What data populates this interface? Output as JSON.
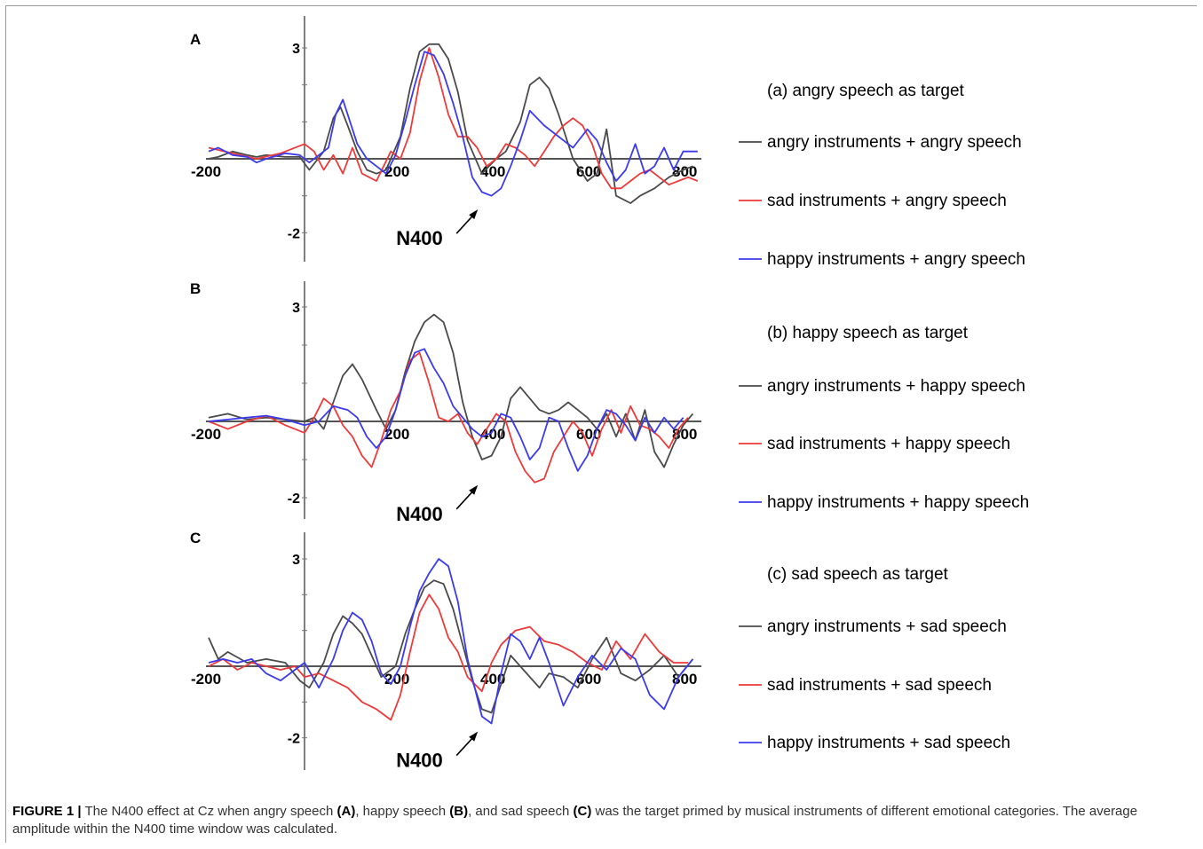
{
  "caption": {
    "label": "FIGURE 1 |",
    "segments": [
      {
        "text": " The N400 effect at Cz when angry speech ",
        "bold": false
      },
      {
        "text": "(A)",
        "bold": true
      },
      {
        "text": ", happy speech ",
        "bold": false
      },
      {
        "text": "(B)",
        "bold": true
      },
      {
        "text": ", and sad speech ",
        "bold": false
      },
      {
        "text": "(C)",
        "bold": true
      },
      {
        "text": " was the target primed by musical instruments of different emotional categories. The average amplitude within the N400 time window was calculated.",
        "bold": false
      }
    ]
  },
  "colors": {
    "angry": "#4a4a4a",
    "sad": "#ee3a3a",
    "happy": "#3b3bee"
  },
  "chart_data": [
    {
      "type": "line",
      "panel": "A",
      "title": "(a) angry speech as target",
      "x_ticks": [
        "-200",
        "200",
        "400",
        "600",
        "800"
      ],
      "y_ticks": [
        "3",
        "-2"
      ],
      "annotation": {
        "text": "N400",
        "x": 380,
        "y": -1.3
      },
      "series": [
        {
          "name": "angry instruments + angry speech",
          "color_key": "angry",
          "x": [
            -200,
            -180,
            -150,
            -120,
            -100,
            -80,
            -40,
            -10,
            10,
            40,
            60,
            75,
            90,
            110,
            130,
            150,
            170,
            200,
            220,
            240,
            260,
            280,
            300,
            320,
            340,
            370,
            385,
            400,
            420,
            450,
            470,
            490,
            510,
            530,
            560,
            590,
            610,
            630,
            650,
            680,
            700,
            730,
            760,
            790,
            810
          ],
          "y": [
            0,
            0.05,
            0.2,
            0.1,
            0.05,
            0.1,
            0.05,
            0.05,
            -0.3,
            0.2,
            1.1,
            1.4,
            0.9,
            0.2,
            -0.3,
            -0.4,
            -0.3,
            0.6,
            1.9,
            2.9,
            3.1,
            3.1,
            2.7,
            1.8,
            0.5,
            -0.4,
            -0.2,
            0,
            0.2,
            1.0,
            2.0,
            2.2,
            1.9,
            1.2,
            0,
            -0.6,
            -0.4,
            0.8,
            -1.0,
            -1.2,
            -1.0,
            -0.8,
            -0.5,
            -0.3,
            -0.2
          ]
        },
        {
          "name": "sad instruments + angry speech",
          "color_key": "sad",
          "x": [
            -200,
            -150,
            -100,
            -50,
            0,
            20,
            40,
            60,
            80,
            100,
            120,
            150,
            180,
            200,
            220,
            240,
            260,
            280,
            300,
            320,
            340,
            360,
            380,
            400,
            420,
            440,
            460,
            480,
            500,
            520,
            540,
            560,
            580,
            600,
            620,
            640,
            660,
            680,
            700,
            720,
            740,
            760,
            780,
            800,
            820
          ],
          "y": [
            0.3,
            0.15,
            0,
            0.15,
            0.4,
            0.2,
            -0.3,
            0.1,
            -0.4,
            0.3,
            -0.4,
            -0.6,
            0.2,
            0,
            0.7,
            2.1,
            3.0,
            2.2,
            1.2,
            0.6,
            0.6,
            0.3,
            -0.2,
            0,
            0.4,
            0.3,
            0.1,
            -0.2,
            0.2,
            0.6,
            0.9,
            1.1,
            0.9,
            0.4,
            -0.4,
            -0.8,
            -0.8,
            -0.6,
            -0.4,
            -0.3,
            -0.5,
            -0.7,
            -0.6,
            -0.5,
            -0.6
          ]
        },
        {
          "name": "happy instruments + angry speech",
          "color_key": "happy",
          "x": [
            -200,
            -180,
            -150,
            -120,
            -100,
            -80,
            -40,
            -10,
            10,
            30,
            50,
            65,
            80,
            95,
            110,
            130,
            150,
            170,
            190,
            210,
            230,
            250,
            270,
            290,
            310,
            330,
            350,
            370,
            390,
            410,
            430,
            450,
            470,
            500,
            530,
            560,
            590,
            610,
            630,
            650,
            670,
            690,
            710,
            730,
            750,
            770,
            790,
            820
          ],
          "y": [
            0.2,
            0.3,
            0.1,
            0.05,
            -0.1,
            0,
            0.15,
            0.1,
            -0.1,
            0.1,
            0.3,
            1.2,
            1.6,
            1.0,
            0.4,
            0,
            -0.2,
            -0.4,
            0.1,
            1.0,
            2.0,
            2.9,
            2.8,
            2.3,
            1.5,
            0.6,
            -0.5,
            -0.9,
            -1.0,
            -0.8,
            -0.2,
            0.5,
            1.3,
            0.9,
            0.6,
            0.3,
            0.8,
            0.5,
            -0.1,
            -0.6,
            -0.3,
            0.4,
            -0.4,
            -0.2,
            0.3,
            -0.3,
            0.2,
            0.2
          ]
        }
      ]
    },
    {
      "type": "line",
      "panel": "B",
      "title": "(b) happy speech as target",
      "x_ticks": [
        "-200",
        "200",
        "400",
        "600",
        "800"
      ],
      "y_ticks": [
        "3",
        "-2"
      ],
      "annotation": {
        "text": "N400",
        "x": 380,
        "y": -1.6
      },
      "series": [
        {
          "name": "angry instruments + happy speech",
          "color_key": "angry",
          "x": [
            -200,
            -160,
            -120,
            -80,
            -40,
            0,
            20,
            40,
            60,
            80,
            100,
            120,
            150,
            170,
            190,
            210,
            230,
            250,
            270,
            290,
            310,
            330,
            350,
            370,
            390,
            410,
            430,
            450,
            470,
            490,
            510,
            530,
            550,
            570,
            590,
            610,
            630,
            650,
            670,
            690,
            710,
            730,
            750,
            770,
            790,
            810
          ],
          "y": [
            0.1,
            0.2,
            0.05,
            0.1,
            0.05,
            0,
            0.1,
            -0.2,
            0.5,
            1.2,
            1.5,
            1.1,
            0.3,
            -0.2,
            0.3,
            1.3,
            2.1,
            2.6,
            2.8,
            2.6,
            1.8,
            0.5,
            -0.4,
            -1.0,
            -0.9,
            -0.4,
            0.6,
            0.9,
            0.6,
            0.3,
            0.2,
            0.3,
            0.5,
            0.3,
            0.1,
            -0.2,
            0.2,
            -0.4,
            0.2,
            -0.5,
            0.3,
            -0.8,
            -1.2,
            -0.6,
            -0.1,
            0.2
          ]
        },
        {
          "name": "sad instruments + happy speech",
          "color_key": "sad",
          "x": [
            -200,
            -160,
            -120,
            -80,
            -40,
            0,
            20,
            40,
            60,
            80,
            100,
            120,
            140,
            160,
            180,
            200,
            220,
            240,
            260,
            280,
            300,
            320,
            340,
            360,
            380,
            400,
            420,
            440,
            460,
            480,
            500,
            520,
            540,
            560,
            580,
            600,
            620,
            640,
            660,
            680,
            700,
            720,
            740,
            760,
            780,
            800
          ],
          "y": [
            0,
            -0.2,
            0,
            0.15,
            -0.1,
            -0.3,
            0.1,
            0.6,
            0.4,
            -0.1,
            -0.4,
            -0.9,
            -1.2,
            -0.5,
            0.3,
            0.8,
            1.6,
            1.8,
            1.0,
            0.1,
            0,
            0.2,
            -0.3,
            -0.6,
            -0.2,
            0.2,
            0,
            -0.8,
            -1.3,
            -1.6,
            -1.5,
            -0.8,
            -0.4,
            0,
            -0.3,
            -0.9,
            -0.2,
            0.3,
            -0.3,
            0.4,
            -0.1,
            -0.2,
            -0.4,
            -0.7,
            -0.2,
            0.1
          ]
        },
        {
          "name": "happy instruments + happy speech",
          "color_key": "happy",
          "x": [
            -200,
            -160,
            -120,
            -80,
            -40,
            0,
            30,
            60,
            90,
            110,
            130,
            150,
            170,
            190,
            210,
            230,
            250,
            270,
            290,
            310,
            330,
            350,
            370,
            390,
            410,
            430,
            450,
            470,
            490,
            510,
            530,
            550,
            570,
            590,
            610,
            630,
            650,
            670,
            690,
            710,
            730,
            750,
            770,
            790
          ],
          "y": [
            0,
            0.05,
            0.1,
            0.15,
            0.05,
            -0.1,
            0,
            0.4,
            0.3,
            0.1,
            -0.4,
            -0.7,
            -0.4,
            0.3,
            1.2,
            1.8,
            1.9,
            1.4,
            1.0,
            0.4,
            0.1,
            -0.2,
            -0.4,
            -0.3,
            0.2,
            0.1,
            -0.4,
            -1.0,
            -0.7,
            0.1,
            0,
            -0.7,
            -1.3,
            -0.9,
            -0.2,
            0.3,
            0.2,
            -0.1,
            -0.5,
            0.1,
            -0.3,
            0.1,
            -0.2,
            0.1
          ]
        }
      ]
    },
    {
      "type": "line",
      "panel": "C",
      "title": "(c) sad speech as target",
      "x_ticks": [
        "-200",
        "200",
        "400",
        "600",
        "800"
      ],
      "y_ticks": [
        "3",
        "-2"
      ],
      "annotation": {
        "text": "N400",
        "x": 380,
        "y": -1.75
      },
      "series": [
        {
          "name": "angry instruments + sad speech",
          "color_key": "angry",
          "x": [
            -200,
            -180,
            -160,
            -120,
            -80,
            -40,
            -10,
            10,
            40,
            60,
            80,
            100,
            120,
            140,
            160,
            190,
            210,
            230,
            250,
            270,
            290,
            310,
            330,
            350,
            370,
            390,
            410,
            430,
            450,
            470,
            490,
            510,
            540,
            570,
            600,
            630,
            660,
            690,
            720,
            750,
            780,
            810
          ],
          "y": [
            0.8,
            0.2,
            0.4,
            0.1,
            0.2,
            0.1,
            -0.4,
            -0.6,
            0.1,
            0.9,
            1.4,
            1.2,
            0.9,
            0.3,
            -0.3,
            0,
            0.9,
            1.6,
            2.2,
            2.4,
            2.3,
            1.6,
            0.6,
            -0.4,
            -1.2,
            -1.3,
            -0.5,
            0.3,
            0,
            -0.3,
            -0.6,
            -0.2,
            -0.3,
            -0.6,
            0.2,
            0.8,
            -0.2,
            -0.4,
            -0.1,
            0.3,
            -0.3,
            0.2
          ]
        },
        {
          "name": "sad instruments + sad speech",
          "color_key": "sad",
          "x": [
            -200,
            -170,
            -140,
            -110,
            -80,
            -50,
            -20,
            0,
            30,
            60,
            90,
            120,
            150,
            180,
            200,
            220,
            240,
            260,
            280,
            300,
            320,
            340,
            370,
            390,
            410,
            440,
            470,
            500,
            530,
            560,
            590,
            620,
            650,
            680,
            710,
            740,
            770,
            800
          ],
          "y": [
            0,
            0.2,
            -0.1,
            0.1,
            0,
            -0.1,
            0,
            -0.3,
            -0.2,
            -0.4,
            -0.6,
            -1.0,
            -1.2,
            -1.5,
            -0.8,
            0.4,
            1.5,
            2.0,
            1.6,
            0.8,
            0.4,
            -0.3,
            -0.7,
            0.1,
            0.6,
            1.0,
            1.1,
            0.7,
            0.6,
            0.4,
            0.1,
            -0.1,
            0.7,
            0.2,
            0.9,
            0.4,
            0.1,
            0.1
          ]
        },
        {
          "name": "happy instruments + sad speech",
          "color_key": "happy",
          "x": [
            -200,
            -170,
            -140,
            -110,
            -80,
            -50,
            -20,
            0,
            30,
            60,
            80,
            100,
            120,
            140,
            160,
            180,
            200,
            220,
            240,
            260,
            280,
            300,
            320,
            340,
            370,
            390,
            410,
            430,
            450,
            470,
            490,
            510,
            540,
            570,
            600,
            630,
            660,
            690,
            720,
            750,
            780,
            810
          ],
          "y": [
            0.1,
            0.2,
            0.1,
            0.2,
            -0.2,
            -0.4,
            -0.1,
            0.1,
            -0.6,
            0.2,
            1.0,
            1.5,
            1.3,
            0.7,
            -0.2,
            -0.5,
            0,
            1.1,
            2.1,
            2.6,
            3.0,
            2.8,
            1.8,
            0.2,
            -1.4,
            -1.6,
            -0.2,
            0.9,
            0.7,
            0.2,
            0.8,
            0.1,
            -1.1,
            -0.3,
            0.3,
            -0.1,
            0.5,
            0.2,
            -0.8,
            -1.2,
            -0.3,
            0.2
          ]
        }
      ]
    }
  ]
}
